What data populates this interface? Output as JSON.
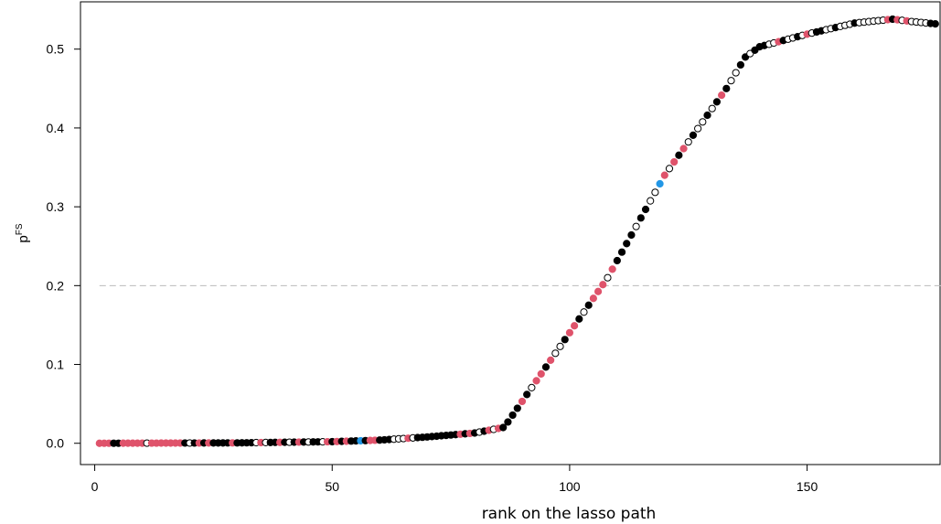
{
  "chart_data": {
    "type": "scatter",
    "title": "",
    "xlabel": "rank on the lasso path",
    "ylabel": "p",
    "ylabel_superscript": "FS",
    "xlim": [
      -3,
      178
    ],
    "ylim": [
      -0.027,
      0.56
    ],
    "x_ticks": [
      0,
      50,
      100,
      150
    ],
    "x_tick_labels": [
      "0",
      "50",
      "100",
      "150"
    ],
    "y_ticks": [
      0.0,
      0.1,
      0.2,
      0.3,
      0.4,
      0.5
    ],
    "y_tick_labels": [
      "0.0",
      "0.1",
      "0.2",
      "0.3",
      "0.4",
      "0.5"
    ],
    "reference_line": {
      "y": 0.2,
      "style": "dashed",
      "color": "#bbbbbb"
    },
    "grid": false,
    "legend": "none",
    "point_styles": {
      "black": {
        "fill": "#000000",
        "stroke": "#000000"
      },
      "red": {
        "fill": "#df536b",
        "stroke": "#df536b"
      },
      "blue": {
        "fill": "#2297e6",
        "stroke": "#2297e6"
      },
      "open": {
        "fill": "#ffffff",
        "stroke": "#000000"
      }
    },
    "curve": [
      [
        1,
        0.0
      ],
      [
        30,
        0.0005
      ],
      [
        50,
        0.002
      ],
      [
        60,
        0.004
      ],
      [
        70,
        0.008
      ],
      [
        80,
        0.013
      ],
      [
        86,
        0.02
      ],
      [
        87,
        0.027
      ],
      [
        108,
        0.21
      ],
      [
        120,
        0.34
      ],
      [
        133,
        0.45
      ],
      [
        137,
        0.49
      ],
      [
        140,
        0.503
      ],
      [
        145,
        0.511
      ],
      [
        150,
        0.519
      ],
      [
        160,
        0.533
      ],
      [
        168,
        0.538
      ],
      [
        172,
        0.535
      ],
      [
        177,
        0.532
      ]
    ],
    "categories_by_x": {
      "red": [
        1,
        2,
        3,
        6,
        7,
        8,
        9,
        10,
        12,
        13,
        14,
        15,
        16,
        17,
        18,
        22,
        24,
        29,
        35,
        39,
        43,
        49,
        51,
        53,
        58,
        59,
        66,
        77,
        79,
        83,
        85,
        90,
        93,
        94,
        96,
        100,
        101,
        105,
        106,
        107,
        109,
        120,
        122,
        124,
        132,
        144,
        150,
        167,
        169,
        171
      ],
      "blue": [
        56,
        119
      ],
      "open": [
        11,
        20,
        34,
        36,
        41,
        45,
        48,
        63,
        64,
        65,
        67,
        81,
        84,
        92,
        97,
        98,
        103,
        108,
        114,
        117,
        118,
        121,
        125,
        127,
        128,
        130,
        134,
        135,
        138,
        142,
        143,
        146,
        147,
        149,
        151,
        154,
        155,
        157,
        158,
        159,
        161,
        162,
        163,
        164,
        165,
        166,
        170,
        172,
        173,
        174,
        175
      ]
    },
    "x_range": [
      1,
      177
    ],
    "default_category": "black"
  }
}
